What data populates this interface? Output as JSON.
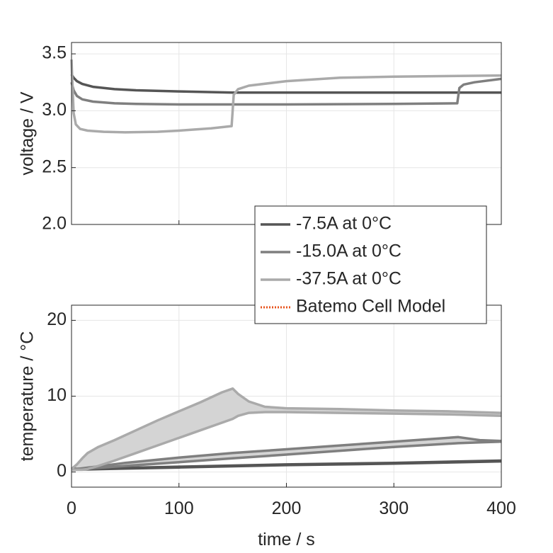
{
  "chart_data": [
    {
      "type": "line",
      "ylabel": "voltage / V",
      "xlim": [
        0,
        400
      ],
      "ylim": [
        2.0,
        3.6
      ],
      "yticks": [
        2.0,
        2.5,
        3.0,
        3.5
      ],
      "ytick_labels": [
        "2.0",
        "2.5",
        "3.0",
        "3.5"
      ],
      "xticks": [
        0,
        100,
        200,
        300,
        400
      ],
      "grid": true,
      "series": [
        {
          "name": "-7.5A at 0°C",
          "color": "#555555",
          "x": [
            0,
            2,
            5,
            10,
            20,
            40,
            60,
            100,
            150,
            200,
            300,
            400
          ],
          "y": [
            3.32,
            3.29,
            3.26,
            3.235,
            3.21,
            3.19,
            3.18,
            3.17,
            3.16,
            3.16,
            3.16,
            3.16
          ]
        },
        {
          "name": "-15.0A at 0°C",
          "color": "#7f7f7f",
          "x": [
            0,
            2,
            5,
            10,
            20,
            40,
            60,
            100,
            150,
            200,
            300,
            359,
            361,
            365,
            375,
            400
          ],
          "y": [
            3.25,
            3.18,
            3.13,
            3.1,
            3.08,
            3.065,
            3.06,
            3.055,
            3.055,
            3.055,
            3.06,
            3.065,
            3.2,
            3.23,
            3.25,
            3.28
          ]
        },
        {
          "name": "-37.5A at 0°C",
          "color": "#aaaaaa",
          "x": [
            0,
            1,
            2,
            4,
            8,
            15,
            30,
            50,
            80,
            100,
            130,
            149,
            151,
            155,
            165,
            200,
            250,
            300,
            400
          ],
          "y": [
            3.45,
            3.2,
            2.98,
            2.88,
            2.84,
            2.825,
            2.815,
            2.81,
            2.815,
            2.825,
            2.845,
            2.865,
            3.14,
            3.19,
            3.22,
            3.26,
            3.29,
            3.3,
            3.31
          ]
        }
      ]
    },
    {
      "type": "area",
      "xlabel": "time / s",
      "ylabel": "temperature / °C",
      "xlim": [
        0,
        400
      ],
      "ylim": [
        -2,
        22
      ],
      "yticks": [
        0,
        10,
        20
      ],
      "ytick_labels": [
        "0",
        "10",
        "20"
      ],
      "xticks": [
        0,
        100,
        200,
        300,
        400
      ],
      "xtick_labels": [
        "0",
        "100",
        "200",
        "300",
        "400"
      ],
      "grid": true,
      "series": [
        {
          "name": "-7.5A at 0°C",
          "color": "#555555",
          "fill": "#d4d4d4",
          "x": [
            0,
            50,
            100,
            200,
            300,
            400
          ],
          "upper": [
            0.4,
            0.55,
            0.7,
            1.0,
            1.2,
            1.5
          ],
          "lower": [
            0.3,
            0.45,
            0.6,
            0.9,
            1.1,
            1.4
          ]
        },
        {
          "name": "-15.0A at 0°C",
          "color": "#7f7f7f",
          "fill": "#d4d4d4",
          "x": [
            0,
            50,
            100,
            150,
            200,
            250,
            300,
            360,
            380,
            400
          ],
          "upper": [
            0.3,
            1.2,
            1.9,
            2.5,
            3.0,
            3.5,
            4.0,
            4.6,
            4.2,
            4.1
          ],
          "lower": [
            0.3,
            0.8,
            1.3,
            1.8,
            2.3,
            2.8,
            3.3,
            3.8,
            3.9,
            4.0
          ]
        },
        {
          "name": "-37.5A at 0°C",
          "color": "#aaaaaa",
          "fill": "#d4d4d4",
          "x": [
            0,
            5,
            10,
            15,
            25,
            40,
            60,
            80,
            100,
            120,
            140,
            150,
            155,
            165,
            180,
            200,
            250,
            300,
            350,
            400
          ],
          "upper": [
            0.4,
            1.0,
            1.8,
            2.5,
            3.3,
            4.2,
            5.5,
            6.8,
            8.0,
            9.2,
            10.5,
            11.0,
            10.3,
            9.3,
            8.6,
            8.4,
            8.3,
            8.1,
            8.0,
            7.8
          ],
          "lower": [
            0.3,
            0.3,
            0.3,
            0.4,
            0.8,
            1.5,
            2.5,
            3.5,
            4.5,
            5.5,
            6.5,
            7.0,
            7.4,
            7.8,
            7.9,
            7.9,
            7.8,
            7.7,
            7.6,
            7.4
          ]
        }
      ]
    }
  ],
  "legend": {
    "position": "between subplots, right",
    "entries": [
      {
        "label": "-7.5A at 0°C",
        "color": "#555555",
        "style": "solid"
      },
      {
        "label": "-15.0A at 0°C",
        "color": "#7f7f7f",
        "style": "solid"
      },
      {
        "label": "-37.5A at 0°C",
        "color": "#aaaaaa",
        "style": "solid"
      },
      {
        "label": "Batemo Cell Model",
        "color": "#e8541e",
        "style": "dotted"
      }
    ]
  }
}
